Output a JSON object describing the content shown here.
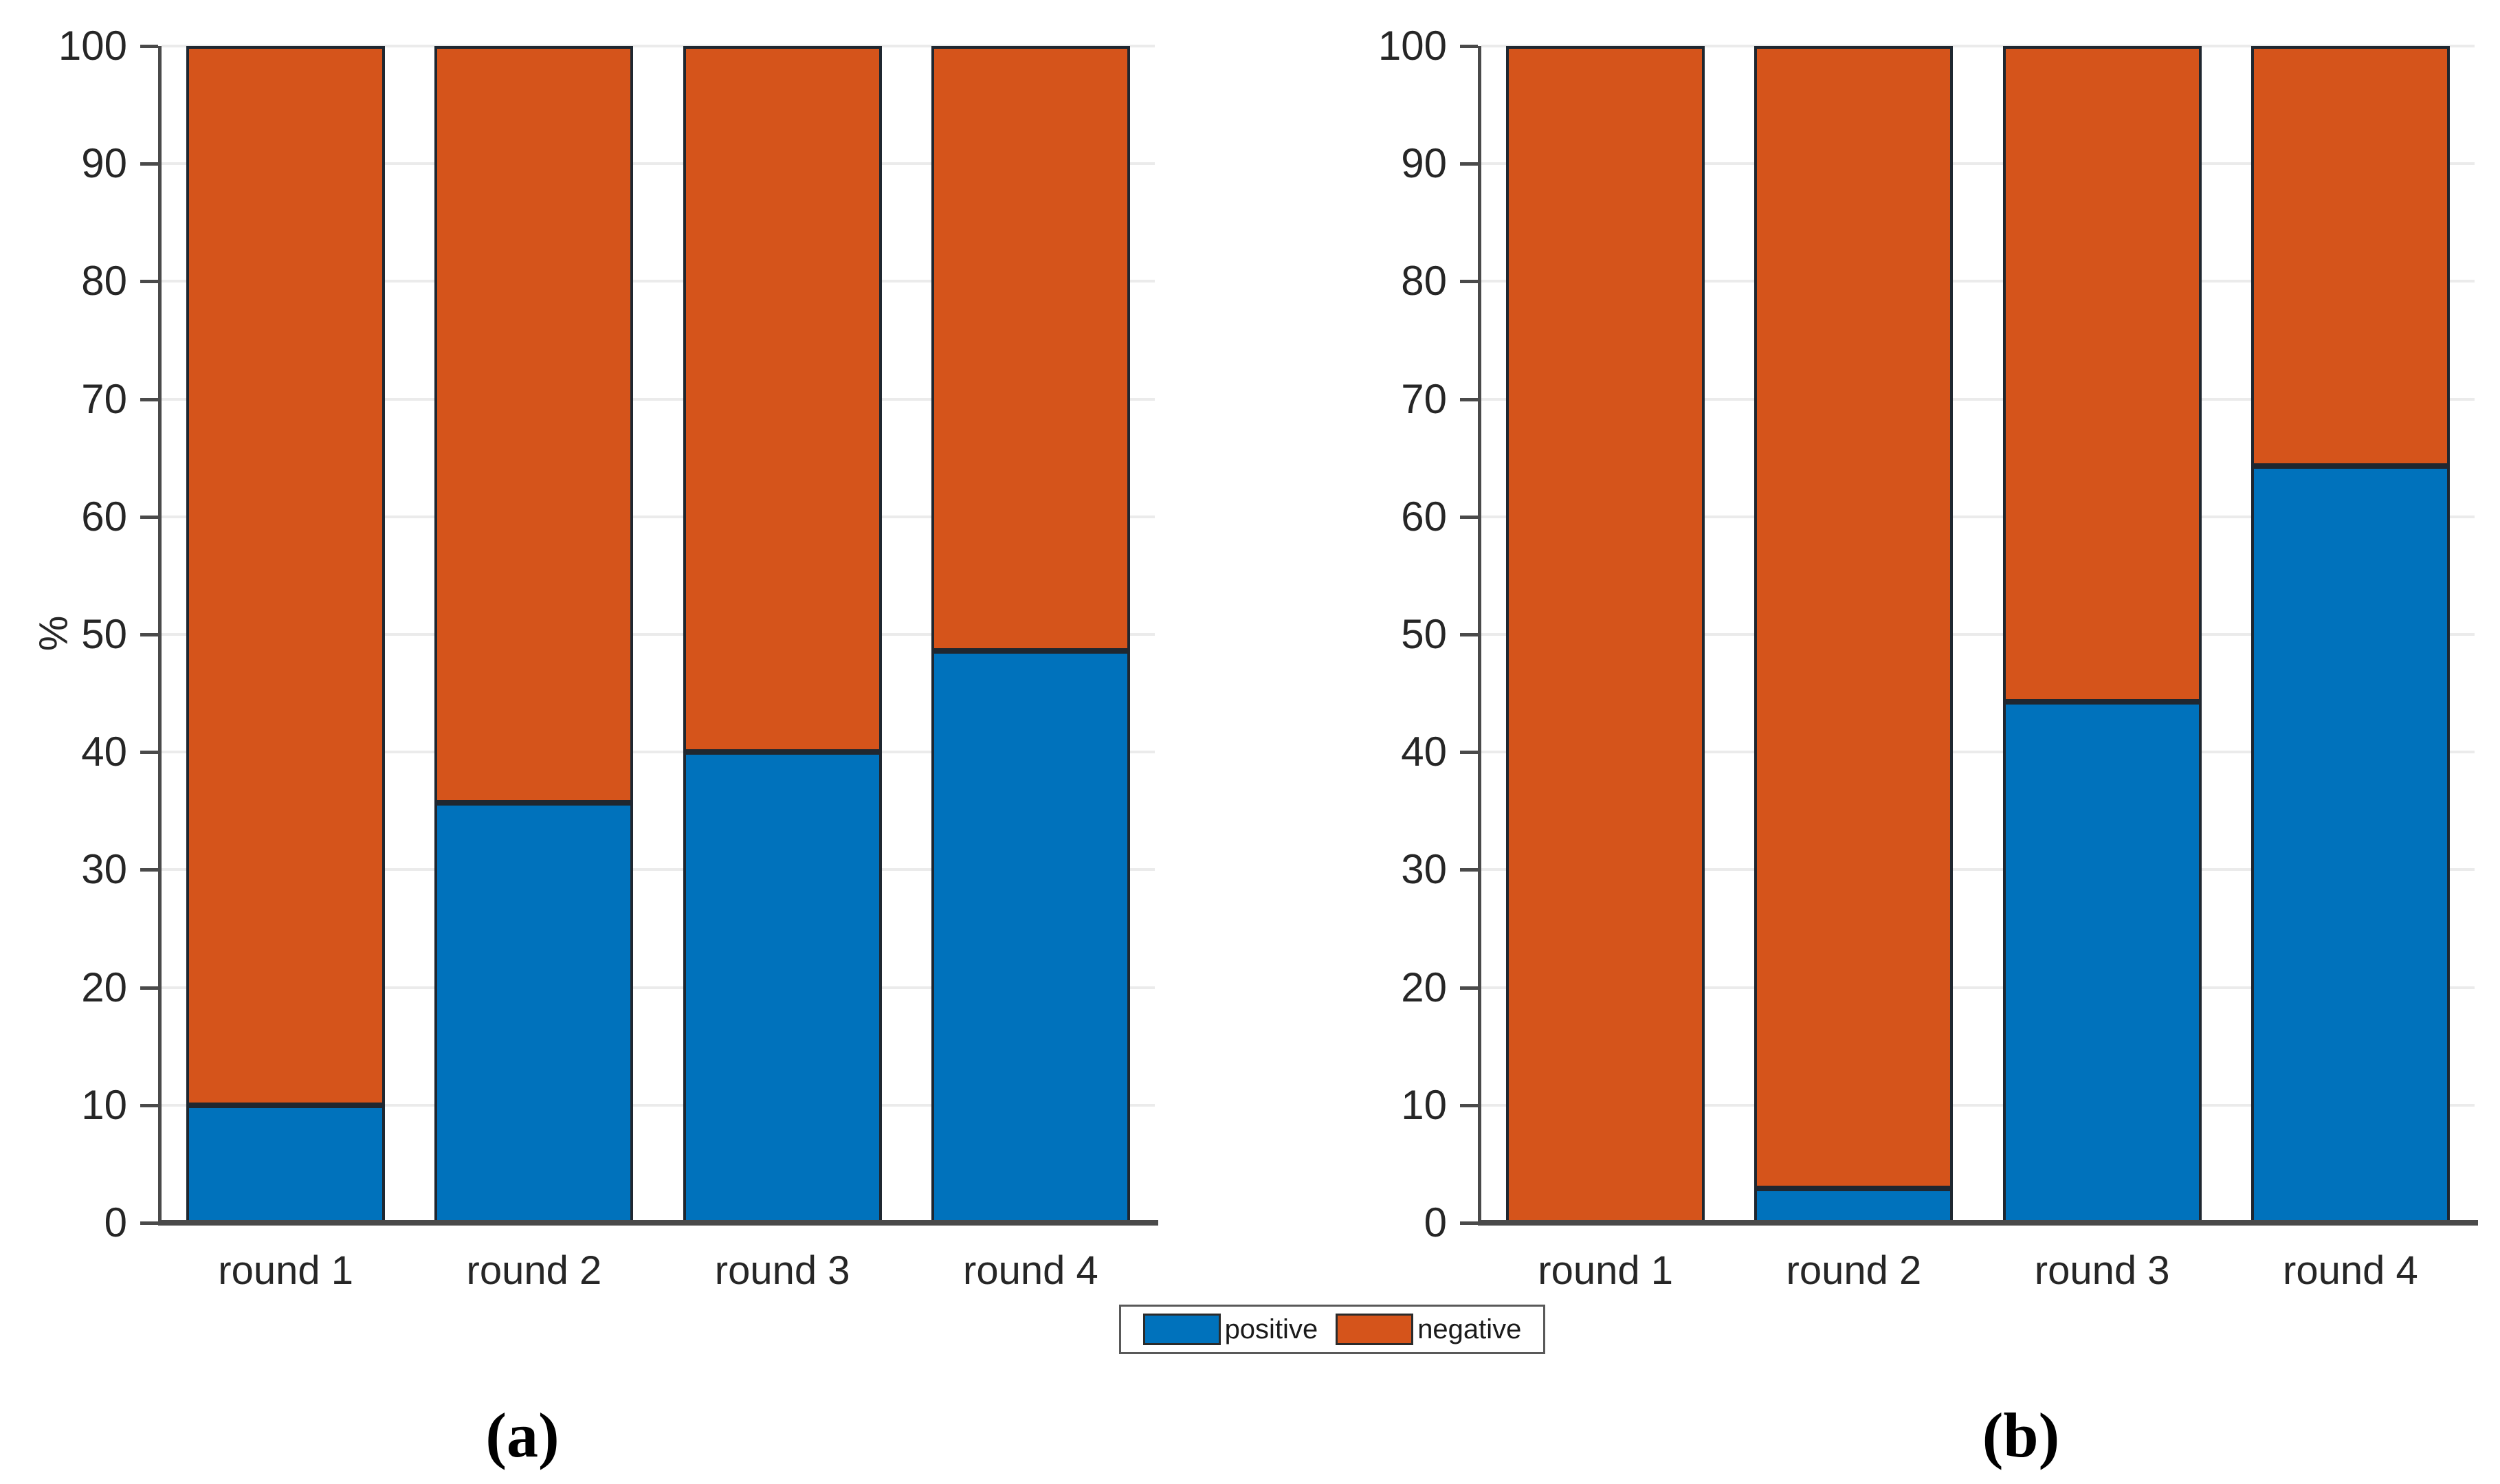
{
  "figure": {
    "background": "#ffffff",
    "ylabel": "%",
    "caption_a": "(a)",
    "caption_b": "(b)"
  },
  "colors": {
    "positive": "#0072BC",
    "negative": "#D5541B",
    "bar_edge": "#1f2730",
    "axis": "#4a4a4a",
    "grid": "#ebebeb",
    "tick_text": "#262626"
  },
  "legend": {
    "position": "bottom-center",
    "items": [
      {
        "label": "positive",
        "color": "#0072BC"
      },
      {
        "label": "negative",
        "color": "#D5541B"
      }
    ]
  },
  "chart_data": [
    {
      "id": "a",
      "type": "bar",
      "stacked": true,
      "stack_total": 100,
      "caption": "(a)",
      "categories": [
        "round 1",
        "round 2",
        "round 3",
        "round 4"
      ],
      "series": [
        {
          "name": "positive",
          "color": "#0072BC",
          "values": [
            10,
            35.7,
            40,
            48.6
          ]
        },
        {
          "name": "negative",
          "color": "#D5541B",
          "values": [
            90,
            64.3,
            60,
            51.4
          ]
        }
      ],
      "xlabel": "",
      "ylabel": "%",
      "ylim": [
        0,
        100
      ],
      "yticks": [
        0,
        10,
        20,
        30,
        40,
        50,
        60,
        70,
        80,
        90,
        100
      ],
      "grid": true
    },
    {
      "id": "b",
      "type": "bar",
      "stacked": true,
      "stack_total": 100,
      "caption": "(b)",
      "categories": [
        "round 1",
        "round 2",
        "round 3",
        "round 4"
      ],
      "series": [
        {
          "name": "positive",
          "color": "#0072BC",
          "values": [
            0,
            2.9,
            44.3,
            64.3
          ]
        },
        {
          "name": "negative",
          "color": "#D5541B",
          "values": [
            100,
            97.1,
            55.7,
            35.7
          ]
        }
      ],
      "xlabel": "",
      "ylabel": "",
      "ylim": [
        0,
        100
      ],
      "yticks": [
        0,
        10,
        20,
        30,
        40,
        50,
        60,
        70,
        80,
        90,
        100
      ],
      "grid": true
    }
  ]
}
